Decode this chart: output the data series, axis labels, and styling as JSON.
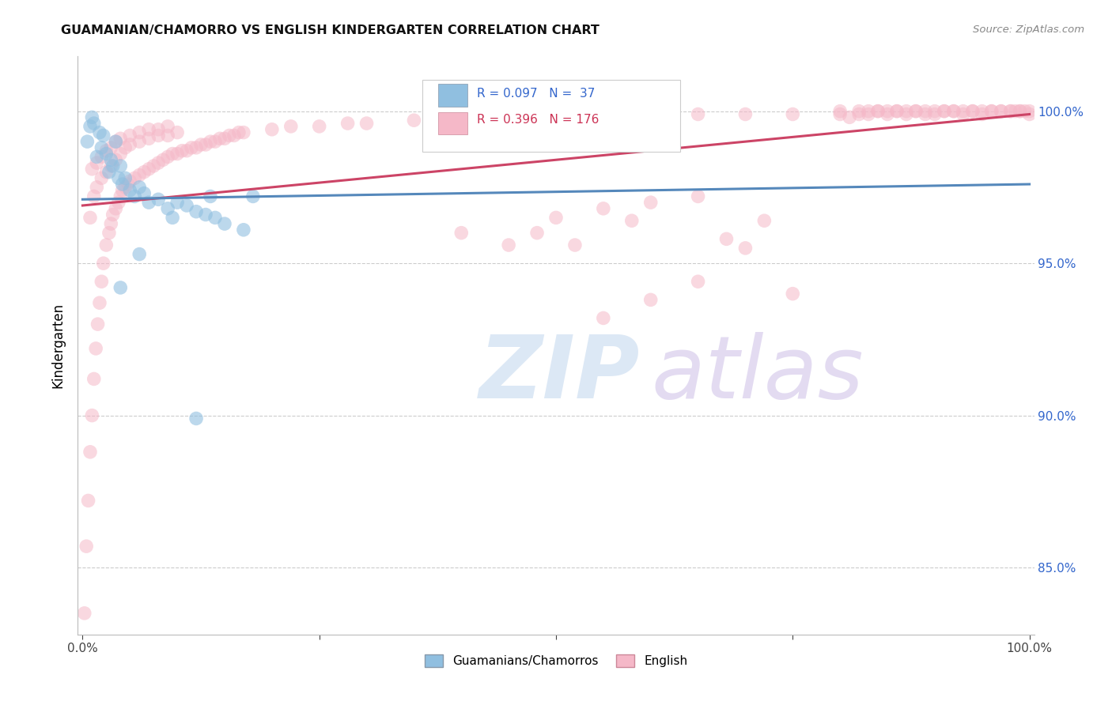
{
  "title": "GUAMANIAN/CHAMORRO VS ENGLISH KINDERGARTEN CORRELATION CHART",
  "source": "Source: ZipAtlas.com",
  "ylabel": "Kindergarten",
  "ytick_labels": [
    "100.0%",
    "95.0%",
    "90.0%",
    "85.0%"
  ],
  "ytick_values": [
    1.0,
    0.95,
    0.9,
    0.85
  ],
  "xlim": [
    -0.005,
    1.005
  ],
  "ylim": [
    0.828,
    1.018
  ],
  "legend_label1": "Guamanians/Chamorros",
  "legend_label2": "English",
  "r1": 0.097,
  "n1": 37,
  "r2": 0.396,
  "n2": 176,
  "color1": "#90bfe0",
  "color2": "#f5b8c8",
  "trendline_color1": "#5588bb",
  "trendline_color2": "#cc4466",
  "background_color": "#ffffff",
  "grid_color": "#cccccc",
  "blue_trendline_x0": 0.0,
  "blue_trendline_y0": 0.971,
  "blue_trendline_x1": 1.0,
  "blue_trendline_y1": 0.976,
  "pink_trendline_x0": 0.0,
  "pink_trendline_y0": 0.969,
  "pink_trendline_x1": 1.0,
  "pink_trendline_y1": 0.999
}
